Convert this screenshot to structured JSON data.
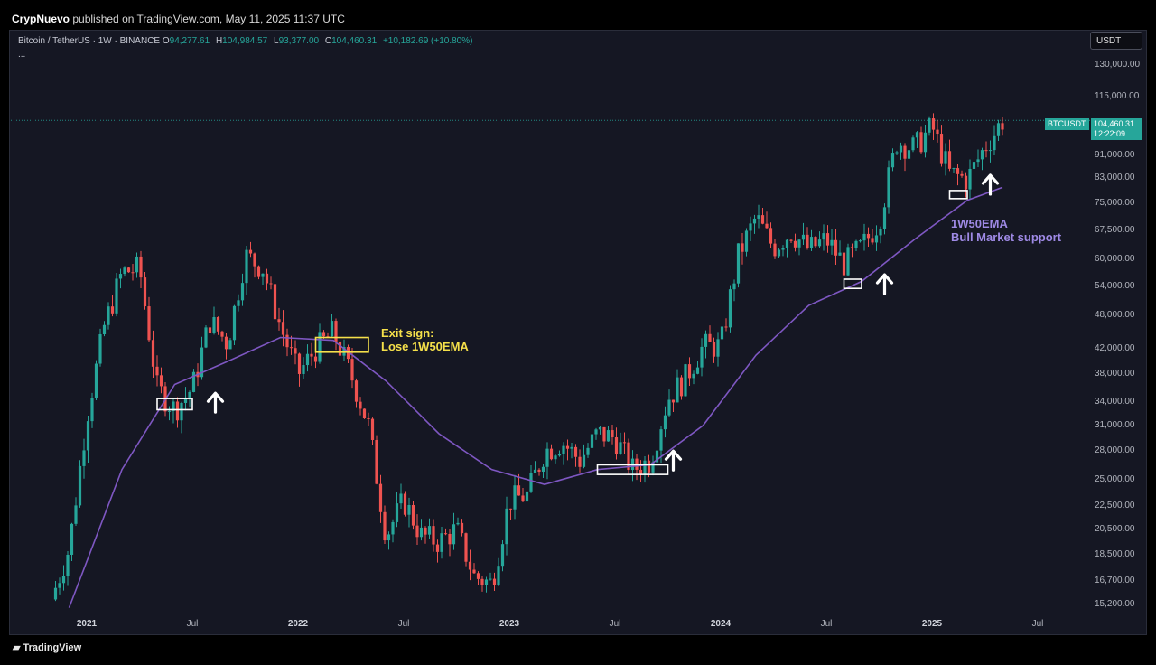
{
  "header": {
    "publisher": "CrypNuevo",
    "published_text": "published on TradingView.com, May 11, 2025 11:37 UTC"
  },
  "legend": {
    "symbol": "Bitcoin / TetherUS · 1W · BINANCE",
    "o_label": "O",
    "o": "94,277.61",
    "h_label": "H",
    "h": "104,984.57",
    "l_label": "L",
    "l": "93,377.00",
    "c_label": "C",
    "c": "104,460.31",
    "change": "+10,182.69 (+10.80%)",
    "more": "..."
  },
  "currency_button": "USDT",
  "price_tag": {
    "symbol": "BTCUSDT",
    "price": "104,460.31",
    "countdown": "12:22:09"
  },
  "annotations": {
    "exit_line1": "Exit sign:",
    "exit_line2": "Lose 1W50EMA",
    "ema_line1": "1W50EMA",
    "ema_line2": "Bull Market support"
  },
  "footer": {
    "brand": "TradingView"
  },
  "colors": {
    "up": "#26a69a",
    "down": "#ef5350",
    "ema": "#7e57c2",
    "background": "#151723"
  },
  "chart_data": {
    "type": "candlestick",
    "title": "",
    "xlabel": "",
    "ylabel": "",
    "scale": "log",
    "ylim": [
      14500,
      135000
    ],
    "y_ticks": [
      15200,
      16700,
      18500,
      20500,
      22500,
      25000,
      28000,
      31000,
      34000,
      38000,
      42000,
      48000,
      54000,
      60000,
      67500,
      75000,
      83000,
      91000,
      115000,
      130000
    ],
    "y_tick_labels": [
      "15,200.00",
      "16,700.00",
      "18,500.00",
      "20,500.00",
      "22,500.00",
      "25,000.00",
      "28,000.00",
      "31,000.00",
      "34,000.00",
      "38,000.00",
      "42,000.00",
      "48,000.00",
      "54,000.00",
      "60,000.00",
      "67,500.00",
      "75,000.00",
      "83,000.00",
      "91,000.00",
      "115,000.00",
      "130,000.00"
    ],
    "x_ticks": [
      {
        "label": "2021",
        "date": "2021-01",
        "bold": true
      },
      {
        "label": "Jul",
        "date": "2021-07",
        "bold": false
      },
      {
        "label": "2022",
        "date": "2022-01",
        "bold": true
      },
      {
        "label": "Jul",
        "date": "2022-07",
        "bold": false
      },
      {
        "label": "2023",
        "date": "2023-01",
        "bold": true
      },
      {
        "label": "Jul",
        "date": "2023-07",
        "bold": false
      },
      {
        "label": "2024",
        "date": "2024-01",
        "bold": true
      },
      {
        "label": "Jul",
        "date": "2024-07",
        "bold": false
      },
      {
        "label": "2025",
        "date": "2025-01",
        "bold": true
      },
      {
        "label": "Jul",
        "date": "2025-07",
        "bold": false
      }
    ],
    "x_range": [
      "2020-11",
      "2025-11"
    ],
    "last_price": 104460.31,
    "close_path": [
      [
        "2020-11",
        15500
      ],
      [
        "2020-12",
        19000
      ],
      [
        "2021-01",
        32000
      ],
      [
        "2021-02",
        46000
      ],
      [
        "2021-03",
        57000
      ],
      [
        "2021-04",
        58000
      ],
      [
        "2021-05",
        36000
      ],
      [
        "2021-06",
        33000
      ],
      [
        "2021-07",
        36000
      ],
      [
        "2021-08",
        47000
      ],
      [
        "2021-09",
        43000
      ],
      [
        "2021-10",
        61000
      ],
      [
        "2021-11",
        58000
      ],
      [
        "2021-12",
        46000
      ],
      [
        "2022-01",
        38000
      ],
      [
        "2022-02",
        42000
      ],
      [
        "2022-03",
        45000
      ],
      [
        "2022-04",
        38000
      ],
      [
        "2022-05",
        31000
      ],
      [
        "2022-06",
        20000
      ],
      [
        "2022-07",
        23000
      ],
      [
        "2022-08",
        20000
      ],
      [
        "2022-09",
        19500
      ],
      [
        "2022-10",
        20500
      ],
      [
        "2022-11",
        17000
      ],
      [
        "2022-12",
        16500
      ],
      [
        "2023-01",
        23000
      ],
      [
        "2023-02",
        23500
      ],
      [
        "2023-03",
        28000
      ],
      [
        "2023-04",
        29000
      ],
      [
        "2023-05",
        27000
      ],
      [
        "2023-06",
        30000
      ],
      [
        "2023-07",
        29500
      ],
      [
        "2023-08",
        26000
      ],
      [
        "2023-09",
        27000
      ],
      [
        "2023-10",
        34500
      ],
      [
        "2023-11",
        37500
      ],
      [
        "2023-12",
        42500
      ],
      [
        "2024-01",
        42500
      ],
      [
        "2024-02",
        61000
      ],
      [
        "2024-03",
        71000
      ],
      [
        "2024-04",
        63000
      ],
      [
        "2024-05",
        67000
      ],
      [
        "2024-06",
        62500
      ],
      [
        "2024-07",
        65000
      ],
      [
        "2024-08",
        59000
      ],
      [
        "2024-09",
        63000
      ],
      [
        "2024-10",
        70000
      ],
      [
        "2024-11",
        96000
      ],
      [
        "2024-12",
        93500
      ],
      [
        "2025-01",
        102000
      ],
      [
        "2025-02",
        84500
      ],
      [
        "2025-03",
        82500
      ],
      [
        "2025-04",
        94000
      ],
      [
        "2025-05",
        104460
      ]
    ],
    "ema50": [
      [
        "2020-12",
        15000
      ],
      [
        "2021-03",
        26000
      ],
      [
        "2021-06",
        36500
      ],
      [
        "2021-09",
        40000
      ],
      [
        "2021-12",
        44000
      ],
      [
        "2022-03",
        43500
      ],
      [
        "2022-06",
        37000
      ],
      [
        "2022-09",
        30000
      ],
      [
        "2022-12",
        26000
      ],
      [
        "2023-03",
        24500
      ],
      [
        "2023-06",
        26000
      ],
      [
        "2023-09",
        26500
      ],
      [
        "2023-12",
        31000
      ],
      [
        "2024-03",
        41000
      ],
      [
        "2024-06",
        50000
      ],
      [
        "2024-09",
        55000
      ],
      [
        "2024-12",
        65000
      ],
      [
        "2025-03",
        76000
      ],
      [
        "2025-05",
        80000
      ]
    ],
    "annotation_boxes": [
      {
        "from": "2021-05",
        "to": "2021-07",
        "low": 33000,
        "high": 34500,
        "color": "white"
      },
      {
        "from": "2022-02",
        "to": "2022-05",
        "low": 41500,
        "high": 44000,
        "color": "yellow"
      },
      {
        "from": "2023-06",
        "to": "2023-10",
        "low": 25500,
        "high": 26500,
        "color": "white"
      },
      {
        "from": "2024-08",
        "to": "2024-09",
        "low": 53500,
        "high": 55500,
        "color": "white"
      },
      {
        "from": "2025-02",
        "to": "2025-03",
        "low": 76500,
        "high": 79000,
        "color": "white"
      }
    ],
    "up_arrows": [
      {
        "date": "2021-08",
        "price": 34000
      },
      {
        "date": "2023-10",
        "price": 27000
      },
      {
        "date": "2024-10",
        "price": 54500
      },
      {
        "date": "2025-04",
        "price": 81000
      }
    ]
  }
}
